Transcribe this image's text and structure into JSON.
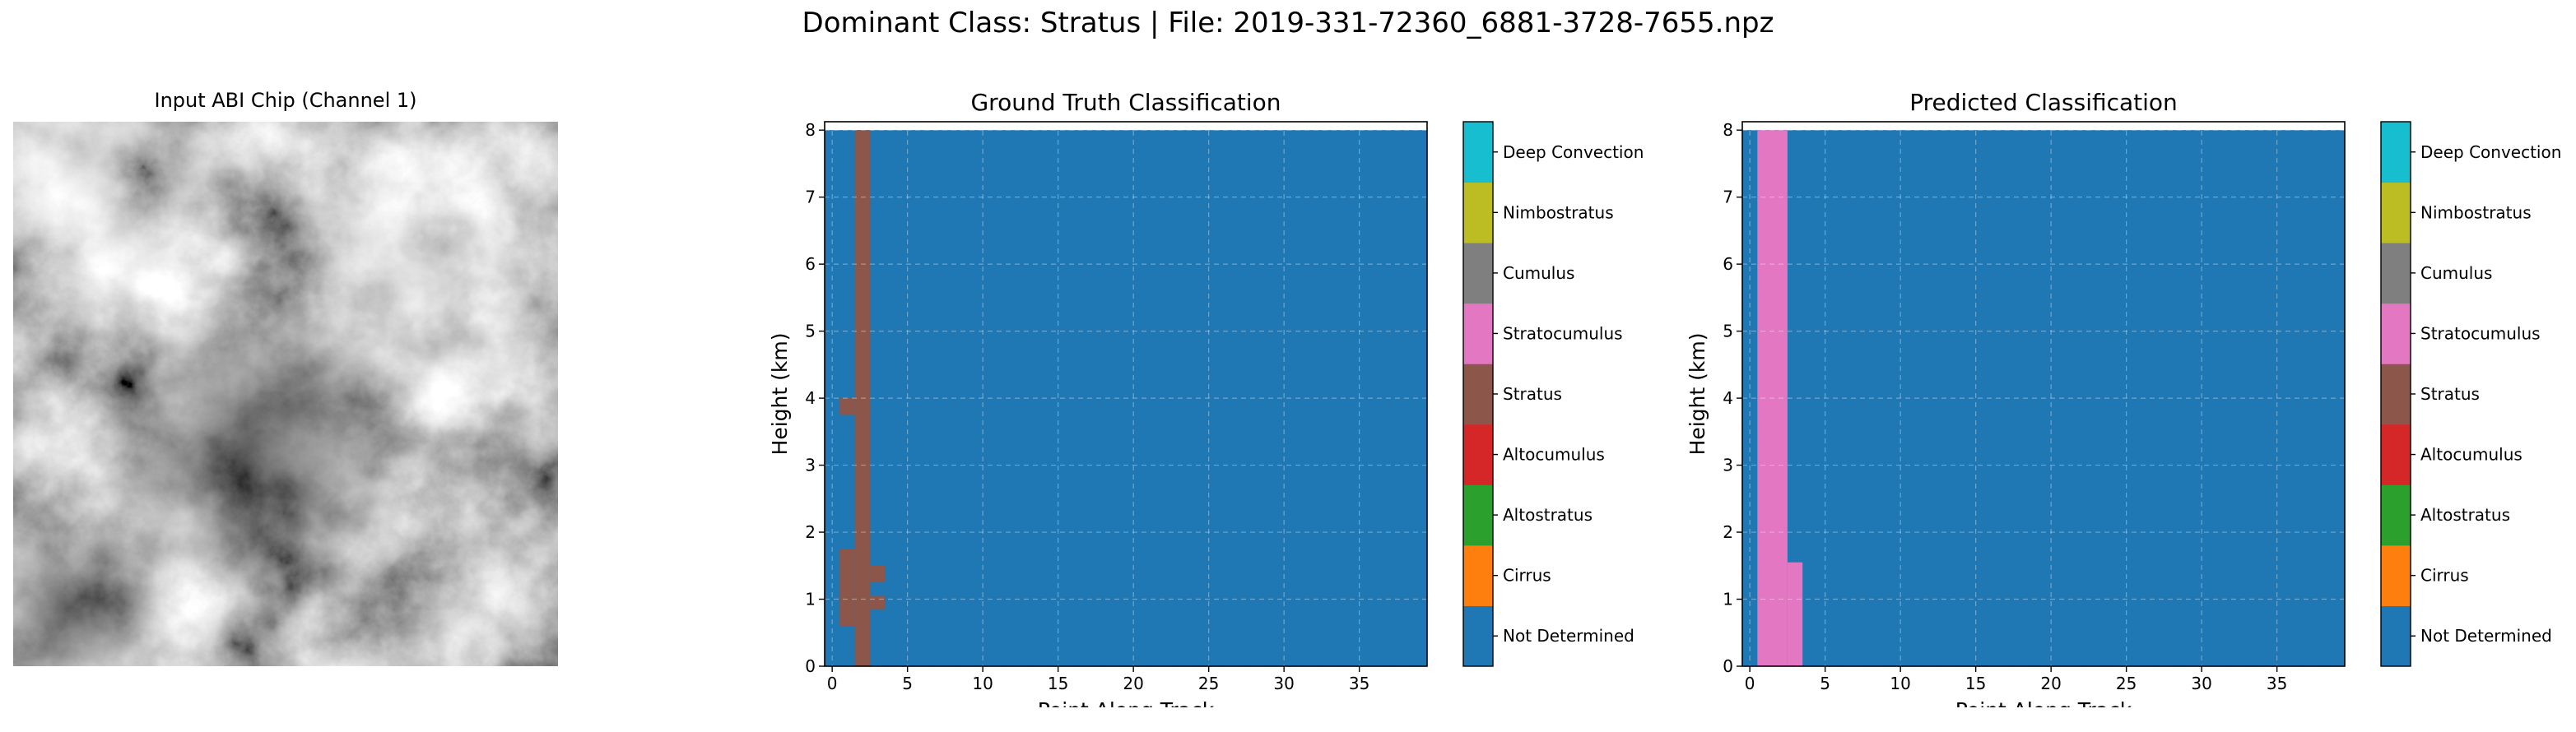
{
  "figure": {
    "suptitle": "Dominant Class: Stratus | File: 2019-331-72360_6881-3728-7655.npz"
  },
  "image_panel": {
    "title": "Input ABI Chip (Channel 1)"
  },
  "classes": [
    {
      "label": "Not Determined",
      "color": "#1f77b4"
    },
    {
      "label": "Cirrus",
      "color": "#ff7f0e"
    },
    {
      "label": "Altostratus",
      "color": "#2ca02c"
    },
    {
      "label": "Altocumulus",
      "color": "#d62728"
    },
    {
      "label": "Stratus",
      "color": "#8c564b"
    },
    {
      "label": "Stratocumulus",
      "color": "#e377c2"
    },
    {
      "label": "Cumulus",
      "color": "#7f7f7f"
    },
    {
      "label": "Nimbostratus",
      "color": "#bcbd22"
    },
    {
      "label": "Deep Convection",
      "color": "#17becf"
    }
  ],
  "chart_data": [
    {
      "type": "heatmap",
      "title": "Ground Truth Classification",
      "xlabel": "Point Along Track",
      "ylabel": "Height (km)",
      "xlim": [
        -0.5,
        39.5
      ],
      "ylim": [
        0,
        8.125
      ],
      "xticks": [
        0,
        5,
        10,
        15,
        20,
        25,
        30,
        35
      ],
      "yticks": [
        0,
        1,
        2,
        3,
        4,
        5,
        6,
        7,
        8
      ],
      "grid": true,
      "background_class": "Not Determined",
      "cells": [
        {
          "x": [
            1.5,
            2.5
          ],
          "y": [
            0,
            8
          ],
          "class": "Stratus"
        },
        {
          "x": [
            0.5,
            1.5
          ],
          "y": [
            3.75,
            4.0
          ],
          "class": "Stratus"
        },
        {
          "x": [
            0.5,
            1.5
          ],
          "y": [
            0.6,
            1.75
          ],
          "class": "Stratus"
        },
        {
          "x": [
            2.5,
            3.5
          ],
          "y": [
            1.25,
            1.5
          ],
          "class": "Stratus"
        },
        {
          "x": [
            2.5,
            3.5
          ],
          "y": [
            0.85,
            1.05
          ],
          "class": "Stratus"
        }
      ]
    },
    {
      "type": "heatmap",
      "title": "Predicted Classification",
      "xlabel": "Point Along Track",
      "ylabel": "Height (km)",
      "xlim": [
        -0.5,
        39.5
      ],
      "ylim": [
        0,
        8.125
      ],
      "xticks": [
        0,
        5,
        10,
        15,
        20,
        25,
        30,
        35
      ],
      "yticks": [
        0,
        1,
        2,
        3,
        4,
        5,
        6,
        7,
        8
      ],
      "grid": true,
      "background_class": "Not Determined",
      "cells": [
        {
          "x": [
            0.5,
            2.5
          ],
          "y": [
            0,
            8
          ],
          "class": "Stratocumulus"
        },
        {
          "x": [
            2.5,
            3.5
          ],
          "y": [
            0,
            1.55
          ],
          "class": "Stratocumulus"
        }
      ]
    }
  ]
}
